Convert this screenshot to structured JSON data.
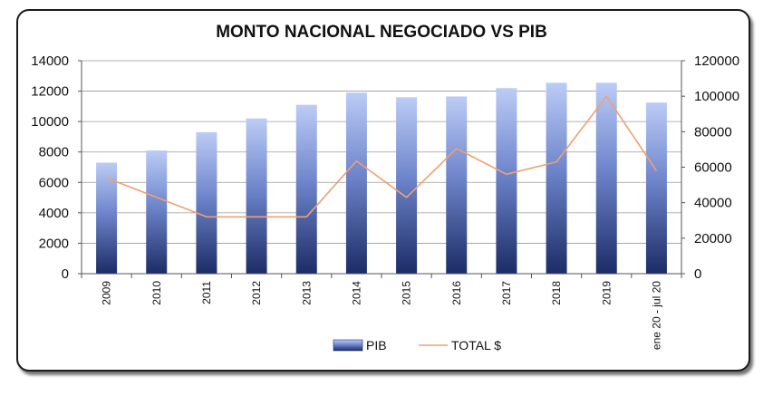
{
  "chart_data": {
    "type": "bar+line",
    "title": "MONTO NACIONAL NEGOCIADO VS PIB",
    "categories": [
      "2009",
      "2010",
      "2011",
      "2012",
      "2013",
      "2014",
      "2015",
      "2016",
      "2017",
      "2018",
      "2019",
      "ene 20 - jul 20"
    ],
    "series": [
      {
        "name": "PIB",
        "type": "bar",
        "axis": "left",
        "color": "#1f3370",
        "values": [
          7300,
          8100,
          9300,
          10200,
          11100,
          11900,
          11600,
          11650,
          12200,
          12550,
          12550,
          11250
        ]
      },
      {
        "name": "TOTAL $",
        "type": "line",
        "axis": "right",
        "color": "#f0a070",
        "values": [
          54000,
          43000,
          32000,
          32000,
          32000,
          63500,
          43000,
          70500,
          56000,
          63000,
          100000,
          58000
        ]
      }
    ],
    "y_left": {
      "min": 0,
      "max": 14000,
      "ticks": [
        "0",
        "2000",
        "4000",
        "6000",
        "8000",
        "10000",
        "12000",
        "14000"
      ]
    },
    "y_right": {
      "min": 0,
      "max": 120000,
      "ticks": [
        "0",
        "20000",
        "40000",
        "60000",
        "80000",
        "100000",
        "120000"
      ]
    },
    "grid": true,
    "legend": "bottom-center"
  }
}
